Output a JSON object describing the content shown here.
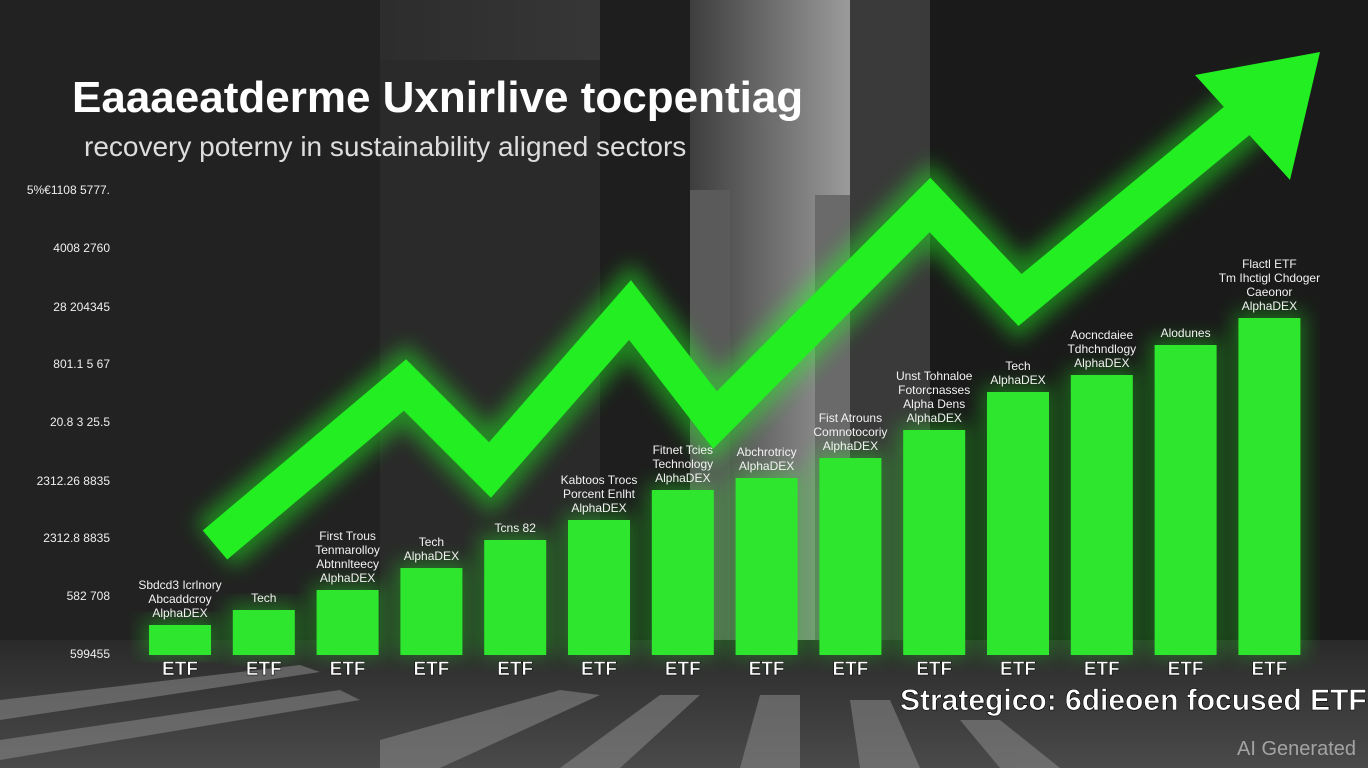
{
  "header": {
    "title": "Eaaaeatderme Uxnirlive tocpentiag",
    "subtitle": "recovery poterny in sustainability aligned sectors"
  },
  "axis_labels": [
    "5%€1108 5777.",
    "4008 2760",
    "28 204345",
    "801.1 5 67",
    "20.8 3 25.5",
    "2312.26 8835",
    "2312.8 8835",
    "582 708",
    "599455"
  ],
  "bars": [
    {
      "lines": [
        "Sbdcd3 Icrlnory",
        "Abcaddcroy",
        "AlphaDEX"
      ],
      "label": "ETF"
    },
    {
      "lines": [
        "Tech"
      ],
      "label": "ETF"
    },
    {
      "lines": [
        "First Trous",
        "Tenmarolloy",
        "Abtnnlteecy",
        "AlphaDEX"
      ],
      "label": "ETF"
    },
    {
      "lines": [
        "Tech",
        "AlphaDEX"
      ],
      "label": "ETF"
    },
    {
      "lines": [
        "Tcns 82"
      ],
      "label": "ETF"
    },
    {
      "lines": [
        "Kabtoos Trocs",
        "Porcent Enlht",
        "AlphaDEX"
      ],
      "label": "ETF"
    },
    {
      "lines": [
        "Fitnet Tcies",
        "Technology",
        "AlphaDEX"
      ],
      "label": "ETF"
    },
    {
      "lines": [
        "Abchrotricy",
        "AlphaDEX"
      ],
      "label": "ETF"
    },
    {
      "lines": [
        "Fist Atrouns",
        "Comnotocoriy",
        "AlphaDEX"
      ],
      "label": "ETF"
    },
    {
      "lines": [
        "Unst Tohnaloe",
        "Fotorcnasses",
        "Alpha Dens",
        "AlphaDEX"
      ],
      "label": "ETF"
    },
    {
      "lines": [
        "Tech",
        "AlphaDEX"
      ],
      "label": "ETF"
    },
    {
      "lines": [
        "Aocncdaiee",
        "Tdhchndlogy",
        "AlphaDEX"
      ],
      "label": "ETF"
    },
    {
      "lines": [
        "Alodunes"
      ],
      "label": "ETF"
    },
    {
      "lines": [
        "Flactl ETF",
        "Tm Ihctigl Chdoger",
        "Caeonor",
        "AlphaDEX"
      ],
      "label": "ETF"
    }
  ],
  "caption": "Strategico: 6dieoen focused ETF",
  "watermark": "AI Generated"
}
